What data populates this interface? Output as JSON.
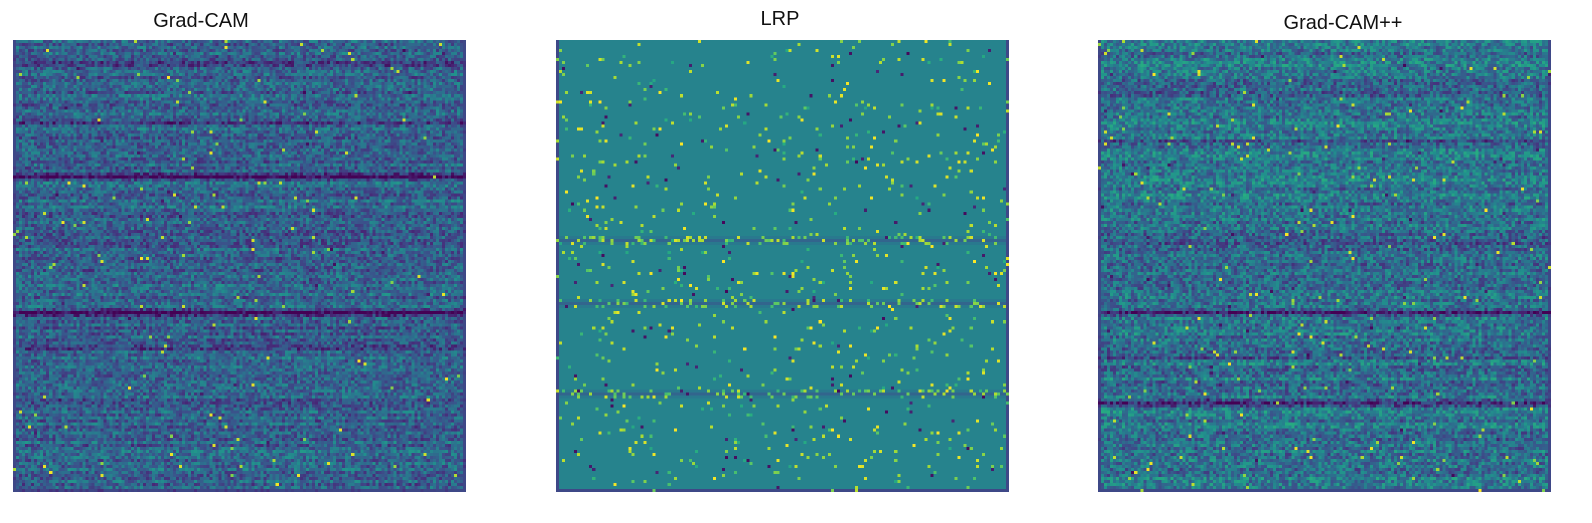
{
  "chart_data": [
    {
      "type": "heatmap",
      "title": "Grad-CAM",
      "colormap": "viridis",
      "axes_visible": false,
      "description_of_values": "dense noisy saliency; dark horizontal bands",
      "rows": 150,
      "cols": 150,
      "base_level": 0.32,
      "noise": 0.16,
      "spark_rate": 0.006,
      "dark_bands": [
        0.3,
        0.6
      ],
      "soft_bands": [
        0.05,
        0.18,
        0.45,
        0.68,
        0.8
      ]
    },
    {
      "type": "heatmap",
      "title": "LRP",
      "colormap": "viridis",
      "axes_visible": false,
      "description_of_values": "sparse relevance; mostly uniform mid value with scattered extremes",
      "rows": 150,
      "cols": 150,
      "base_level": 0.45,
      "noise": 0.02,
      "spark_rate": 0.02,
      "dark_bands": [],
      "soft_bands": [
        0.44,
        0.58,
        0.78
      ]
    },
    {
      "type": "heatmap",
      "title": "Grad-CAM++",
      "colormap": "viridis",
      "axes_visible": false,
      "description_of_values": "dense noisy saliency; dark horizontal bands",
      "rows": 150,
      "cols": 150,
      "base_level": 0.38,
      "noise": 0.18,
      "spark_rate": 0.008,
      "dark_bands": [
        0.6,
        0.8
      ],
      "soft_bands": [
        0.12,
        0.22,
        0.45,
        0.7
      ]
    }
  ]
}
